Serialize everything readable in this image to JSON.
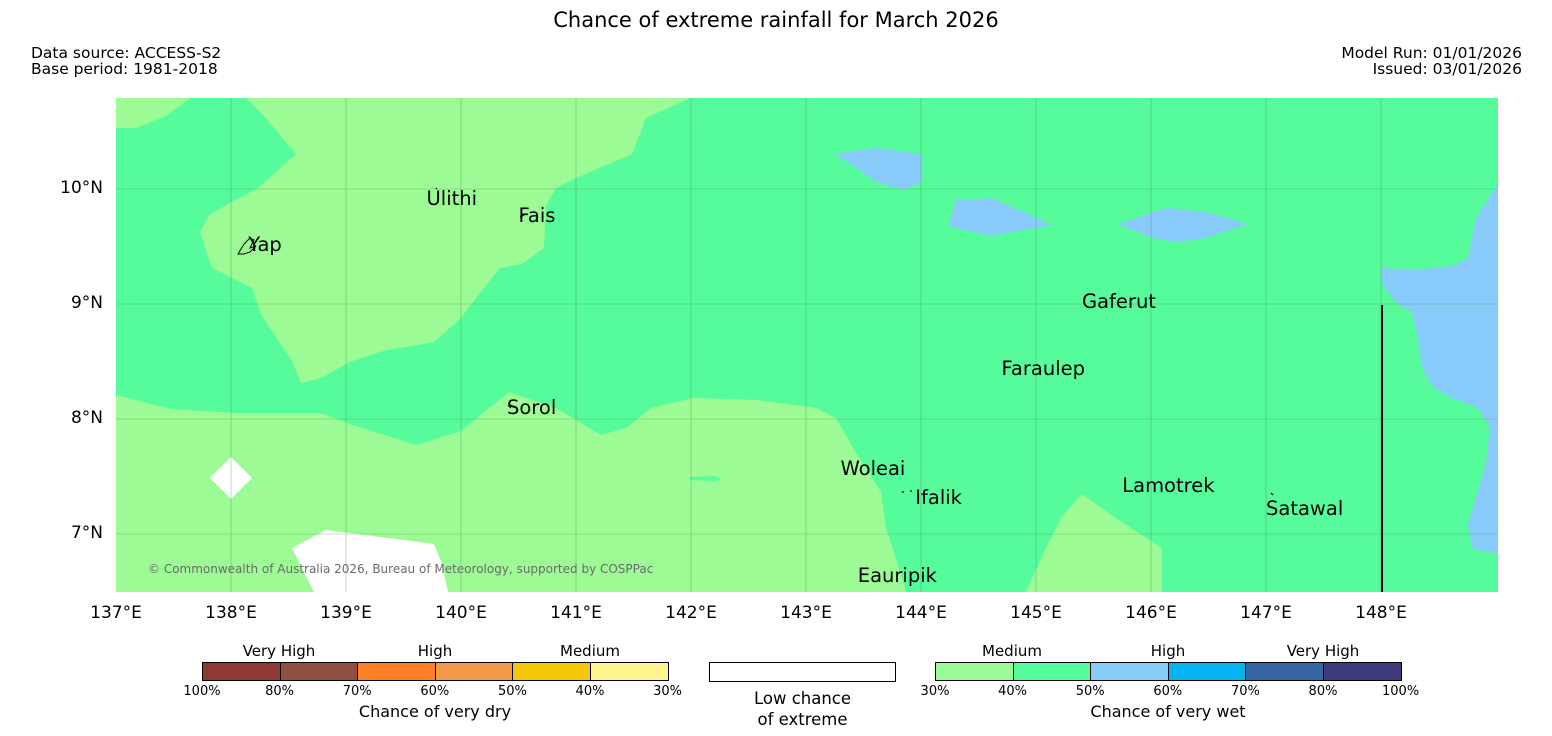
{
  "title": "Chance of extreme rainfall for March 2026",
  "meta": {
    "data_source": "Data source: ACCESS-S2",
    "base_period": "Base period: 1981-2018",
    "model_run": "Model Run: 01/01/2026",
    "issued": "Issued: 03/01/2026"
  },
  "axes": {
    "longitude_ticks": [
      "137°E",
      "138°E",
      "139°E",
      "140°E",
      "141°E",
      "142°E",
      "143°E",
      "144°E",
      "145°E",
      "146°E",
      "147°E",
      "148°E"
    ],
    "latitude_ticks": [
      "10°N",
      "9°N",
      "8°N",
      "7°N"
    ]
  },
  "map": {
    "lon_range": [
      137,
      149
    ],
    "lat_range": [
      6.5,
      10.8
    ],
    "colors": {
      "medium_wet_30_40": "#9dfb95",
      "medium_wet_40_50": "#56fb9b",
      "high_wet_50_60": "#88cbfb",
      "low_chance": "#ffffff"
    },
    "places": [
      {
        "name": "Ulithi",
        "lon": 139.7,
        "lat": 9.9
      },
      {
        "name": "Fais",
        "lon": 140.5,
        "lat": 9.75
      },
      {
        "name": "Yap",
        "lon": 138.15,
        "lat": 9.5
      },
      {
        "name": "Gaferut",
        "lon": 145.4,
        "lat": 9.0
      },
      {
        "name": "Faraulep",
        "lon": 144.7,
        "lat": 8.42
      },
      {
        "name": "Sorol",
        "lon": 140.4,
        "lat": 8.08
      },
      {
        "name": "Woleai",
        "lon": 143.3,
        "lat": 7.55
      },
      {
        "name": "Ifalik",
        "lon": 143.95,
        "lat": 7.3
      },
      {
        "name": "Lamotrek",
        "lon": 145.75,
        "lat": 7.4
      },
      {
        "name": "Satawal",
        "lon": 147.0,
        "lat": 7.2
      },
      {
        "name": "Eauripik",
        "lon": 143.45,
        "lat": 6.62
      }
    ],
    "copyright": "© Commonwealth of Australia 2026, Bureau of Meteorology, supported by COSPPac"
  },
  "legend": {
    "dry": {
      "caption": "Chance of very dry",
      "categories": [
        "Very High",
        "High",
        "Medium"
      ],
      "ticks": [
        "100%",
        "80%",
        "70%",
        "60%",
        "50%",
        "40%",
        "30%"
      ],
      "colors": [
        "#8e3a32",
        "#8f5040",
        "#fb8123",
        "#f19a49",
        "#f1c908",
        "#fdf68f"
      ]
    },
    "low": {
      "caption_line1": "Low chance",
      "caption_line2": "of extreme",
      "color": "#ffffff"
    },
    "wet": {
      "caption": "Chance of very wet",
      "categories": [
        "Medium",
        "High",
        "Very High"
      ],
      "ticks": [
        "30%",
        "40%",
        "50%",
        "60%",
        "70%",
        "80%",
        "100%"
      ],
      "colors": [
        "#9dfb95",
        "#56fb9b",
        "#88cbfb",
        "#04b3f0",
        "#3665a6",
        "#3d3b7a"
      ]
    }
  }
}
